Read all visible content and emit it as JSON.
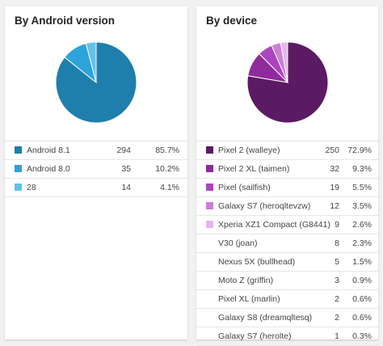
{
  "android_card": {
    "title": "By Android version",
    "rows": [
      {
        "label": "Android 8.1",
        "count": "294",
        "percent": "85.7%",
        "color": "#1e7fac"
      },
      {
        "label": "Android 8.0",
        "count": "35",
        "percent": "10.2%",
        "color": "#2ca4db"
      },
      {
        "label": "28",
        "count": "14",
        "percent": "4.1%",
        "color": "#65c1ea"
      }
    ]
  },
  "device_card": {
    "title": "By device",
    "rows": [
      {
        "label": "Pixel 2 (walleye)",
        "count": "250",
        "percent": "72.9%",
        "color": "#5b1a63"
      },
      {
        "label": "Pixel 2 XL (taimen)",
        "count": "32",
        "percent": "9.3%",
        "color": "#8e2a9b"
      },
      {
        "label": "Pixel (sailfish)",
        "count": "19",
        "percent": "5.5%",
        "color": "#ad43bf"
      },
      {
        "label": "Galaxy S7 (heroqltevzw)",
        "count": "12",
        "percent": "3.5%",
        "color": "#cb7fd6"
      },
      {
        "label": "Xperia XZ1 Compact (G8441)",
        "count": "9",
        "percent": "2.6%",
        "color": "#e1b8e7"
      },
      {
        "label": "V30 (joan)",
        "count": "8",
        "percent": "2.3%",
        "color": ""
      },
      {
        "label": "Nexus 5X (bullhead)",
        "count": "5",
        "percent": "1.5%",
        "color": ""
      },
      {
        "label": "Moto Z (griffin)",
        "count": "3",
        "percent": "0.9%",
        "color": ""
      },
      {
        "label": "Pixel XL (marlin)",
        "count": "2",
        "percent": "0.6%",
        "color": ""
      },
      {
        "label": "Galaxy S8 (dreamqltesq)",
        "count": "2",
        "percent": "0.6%",
        "color": ""
      },
      {
        "label": "Galaxy S7 (herolte)",
        "count": "1",
        "percent": "0.3%",
        "color": ""
      }
    ]
  },
  "chart_data": [
    {
      "type": "pie",
      "categories": [
        "Android 8.1",
        "Android 8.0",
        "28"
      ],
      "values": [
        294,
        35,
        14
      ],
      "colors": [
        "#1e7fac",
        "#2ca4db",
        "#65c1ea"
      ]
    },
    {
      "type": "pie",
      "categories": [
        "Pixel 2 (walleye)",
        "Pixel 2 XL (taimen)",
        "Pixel (sailfish)",
        "Galaxy S7 (heroqltevzw)",
        "Xperia XZ1 Compact (G8441)"
      ],
      "values": [
        250,
        32,
        19,
        12,
        9
      ],
      "colors": [
        "#5b1a63",
        "#8e2a9b",
        "#ad43bf",
        "#cb7fd6",
        "#e1b8e7"
      ]
    }
  ]
}
